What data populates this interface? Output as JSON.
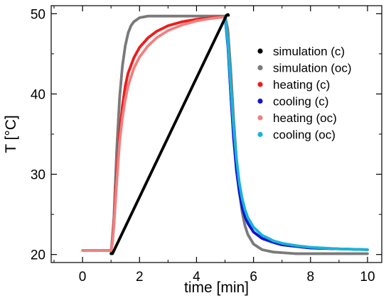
{
  "chart_data": {
    "type": "scatter",
    "title": "",
    "xlabel": "time [min]",
    "ylabel": "T [°C]",
    "xlim": [
      -1.1,
      10.5
    ],
    "ylim": [
      19,
      51
    ],
    "xticks": [
      0,
      2,
      4,
      6,
      8,
      10
    ],
    "xtick_labels": [
      "0",
      "2",
      "4",
      "6",
      "8",
      "10"
    ],
    "yticks": [
      20,
      30,
      40,
      50
    ],
    "ytick_labels": [
      "20",
      "30",
      "40",
      "50"
    ],
    "grid": false,
    "legend_position": "top-right",
    "series": [
      {
        "name": "simulation (c)",
        "color": "#000000",
        "points": [
          [
            1.0,
            20.1
          ],
          [
            1.05,
            20.1
          ],
          [
            5.05,
            49.8
          ],
          [
            5.1,
            49.9
          ],
          [
            5.12,
            49.8
          ]
        ]
      },
      {
        "name": "simulation (oc)",
        "color": "#7a7a7a",
        "points": [
          [
            1.0,
            20.1
          ],
          [
            1.1,
            24.5
          ],
          [
            1.2,
            33.0
          ],
          [
            1.3,
            39.5
          ],
          [
            1.4,
            43.5
          ],
          [
            1.5,
            46.0
          ],
          [
            1.6,
            47.6
          ],
          [
            1.7,
            48.5
          ],
          [
            1.8,
            49.0
          ],
          [
            2.0,
            49.5
          ],
          [
            2.3,
            49.7
          ],
          [
            3.0,
            49.7
          ],
          [
            4.0,
            49.7
          ],
          [
            5.0,
            49.7
          ],
          [
            5.1,
            48.0
          ],
          [
            5.2,
            43.0
          ],
          [
            5.3,
            37.0
          ],
          [
            5.4,
            32.0
          ],
          [
            5.5,
            28.0
          ],
          [
            5.6,
            25.3
          ],
          [
            5.7,
            23.6
          ],
          [
            5.8,
            22.5
          ],
          [
            6.0,
            21.3
          ],
          [
            6.3,
            20.6
          ],
          [
            6.7,
            20.3
          ],
          [
            7.5,
            20.1
          ],
          [
            8.5,
            20.1
          ],
          [
            10.0,
            20.1
          ]
        ]
      },
      {
        "name": "heating (c)",
        "color": "#ee1c1c",
        "points": [
          [
            0.0,
            20.5
          ],
          [
            0.5,
            20.5
          ],
          [
            1.0,
            20.5
          ],
          [
            1.05,
            21.5
          ],
          [
            1.1,
            24.0
          ],
          [
            1.2,
            30.0
          ],
          [
            1.3,
            35.0
          ],
          [
            1.4,
            38.5
          ],
          [
            1.5,
            41.0
          ],
          [
            1.6,
            42.6
          ],
          [
            1.8,
            44.5
          ],
          [
            2.0,
            45.8
          ],
          [
            2.3,
            47.0
          ],
          [
            2.6,
            47.8
          ],
          [
            3.0,
            48.5
          ],
          [
            3.5,
            49.0
          ],
          [
            4.0,
            49.3
          ],
          [
            4.5,
            49.5
          ],
          [
            5.0,
            49.6
          ]
        ]
      },
      {
        "name": "cooling (c)",
        "color": "#1414d2",
        "points": [
          [
            5.0,
            49.6
          ],
          [
            5.1,
            46.0
          ],
          [
            5.2,
            40.0
          ],
          [
            5.3,
            34.5
          ],
          [
            5.4,
            30.5
          ],
          [
            5.5,
            27.8
          ],
          [
            5.6,
            25.9
          ],
          [
            5.7,
            24.7
          ],
          [
            5.8,
            23.9
          ],
          [
            6.0,
            22.8
          ],
          [
            6.3,
            22.0
          ],
          [
            6.7,
            21.5
          ],
          [
            7.0,
            21.2
          ],
          [
            7.5,
            21.0
          ],
          [
            8.0,
            20.8
          ],
          [
            9.0,
            20.7
          ],
          [
            10.0,
            20.6
          ]
        ]
      },
      {
        "name": "heating (oc)",
        "color": "#f08080",
        "points": [
          [
            0.0,
            20.5
          ],
          [
            0.5,
            20.5
          ],
          [
            1.0,
            20.5
          ],
          [
            1.05,
            21.5
          ],
          [
            1.1,
            23.5
          ],
          [
            1.2,
            29.0
          ],
          [
            1.3,
            34.0
          ],
          [
            1.4,
            37.0
          ],
          [
            1.5,
            39.3
          ],
          [
            1.6,
            41.0
          ],
          [
            1.8,
            43.2
          ],
          [
            2.0,
            44.6
          ],
          [
            2.3,
            46.0
          ],
          [
            2.6,
            47.0
          ],
          [
            3.0,
            47.9
          ],
          [
            3.5,
            48.6
          ],
          [
            4.0,
            49.1
          ],
          [
            4.5,
            49.4
          ],
          [
            5.0,
            49.6
          ]
        ]
      },
      {
        "name": "cooling (oc)",
        "color": "#19b4d8",
        "points": [
          [
            5.0,
            49.6
          ],
          [
            5.1,
            46.5
          ],
          [
            5.2,
            41.0
          ],
          [
            5.3,
            36.0
          ],
          [
            5.4,
            32.0
          ],
          [
            5.5,
            29.0
          ],
          [
            5.6,
            27.0
          ],
          [
            5.7,
            25.6
          ],
          [
            5.8,
            24.6
          ],
          [
            6.0,
            23.4
          ],
          [
            6.3,
            22.4
          ],
          [
            6.7,
            21.7
          ],
          [
            7.0,
            21.4
          ],
          [
            7.5,
            21.1
          ],
          [
            8.0,
            20.9
          ],
          [
            9.0,
            20.7
          ],
          [
            10.0,
            20.6
          ]
        ]
      }
    ]
  }
}
